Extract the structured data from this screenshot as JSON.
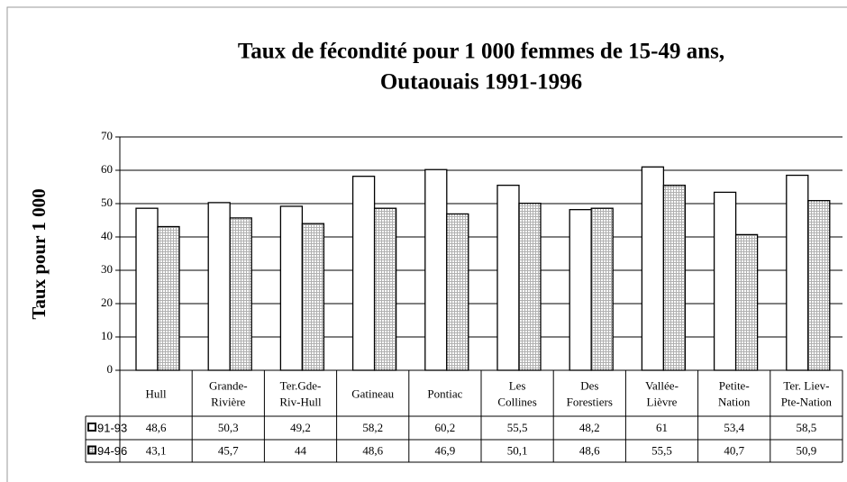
{
  "chart_data": {
    "type": "bar",
    "title": [
      "Taux de fécondité pour 1 000 femmes de 15-49 ans,",
      "Outaouais 1991-1996"
    ],
    "y_label": "Taux pour 1 000",
    "categories": [
      "Hull",
      "Grande-Rivière",
      "Ter.Gde-Riv-Hull",
      "Gatineau",
      "Pontiac",
      "Les Collines",
      "Des Forestiers",
      "Vallée-Lièvre",
      "Petite-Nation",
      "Ter. Liev-Pte-Nation"
    ],
    "series": [
      {
        "name": "91-93",
        "color": "#ffffff",
        "values": [
          48.6,
          50.3,
          49.2,
          58.2,
          60.2,
          55.5,
          48.2,
          61,
          53.4,
          58.5
        ],
        "value_labels": [
          "48,6",
          "50,3",
          "49,2",
          "58,2",
          "60,2",
          "55,5",
          "48,2",
          "61",
          "53,4",
          "58,5"
        ]
      },
      {
        "name": "94-96",
        "color": "#b0b0b0",
        "values": [
          43.1,
          45.7,
          44,
          48.6,
          46.9,
          50.1,
          48.6,
          55.5,
          40.7,
          50.9
        ],
        "value_labels": [
          "43,1",
          "45,7",
          "44",
          "48,6",
          "46,9",
          "50,1",
          "48,6",
          "55,5",
          "40,7",
          "50,9"
        ]
      }
    ],
    "ylim": [
      0,
      70
    ],
    "yticks": [
      0,
      10,
      20,
      30,
      40,
      50,
      60,
      70
    ],
    "grid": true
  }
}
